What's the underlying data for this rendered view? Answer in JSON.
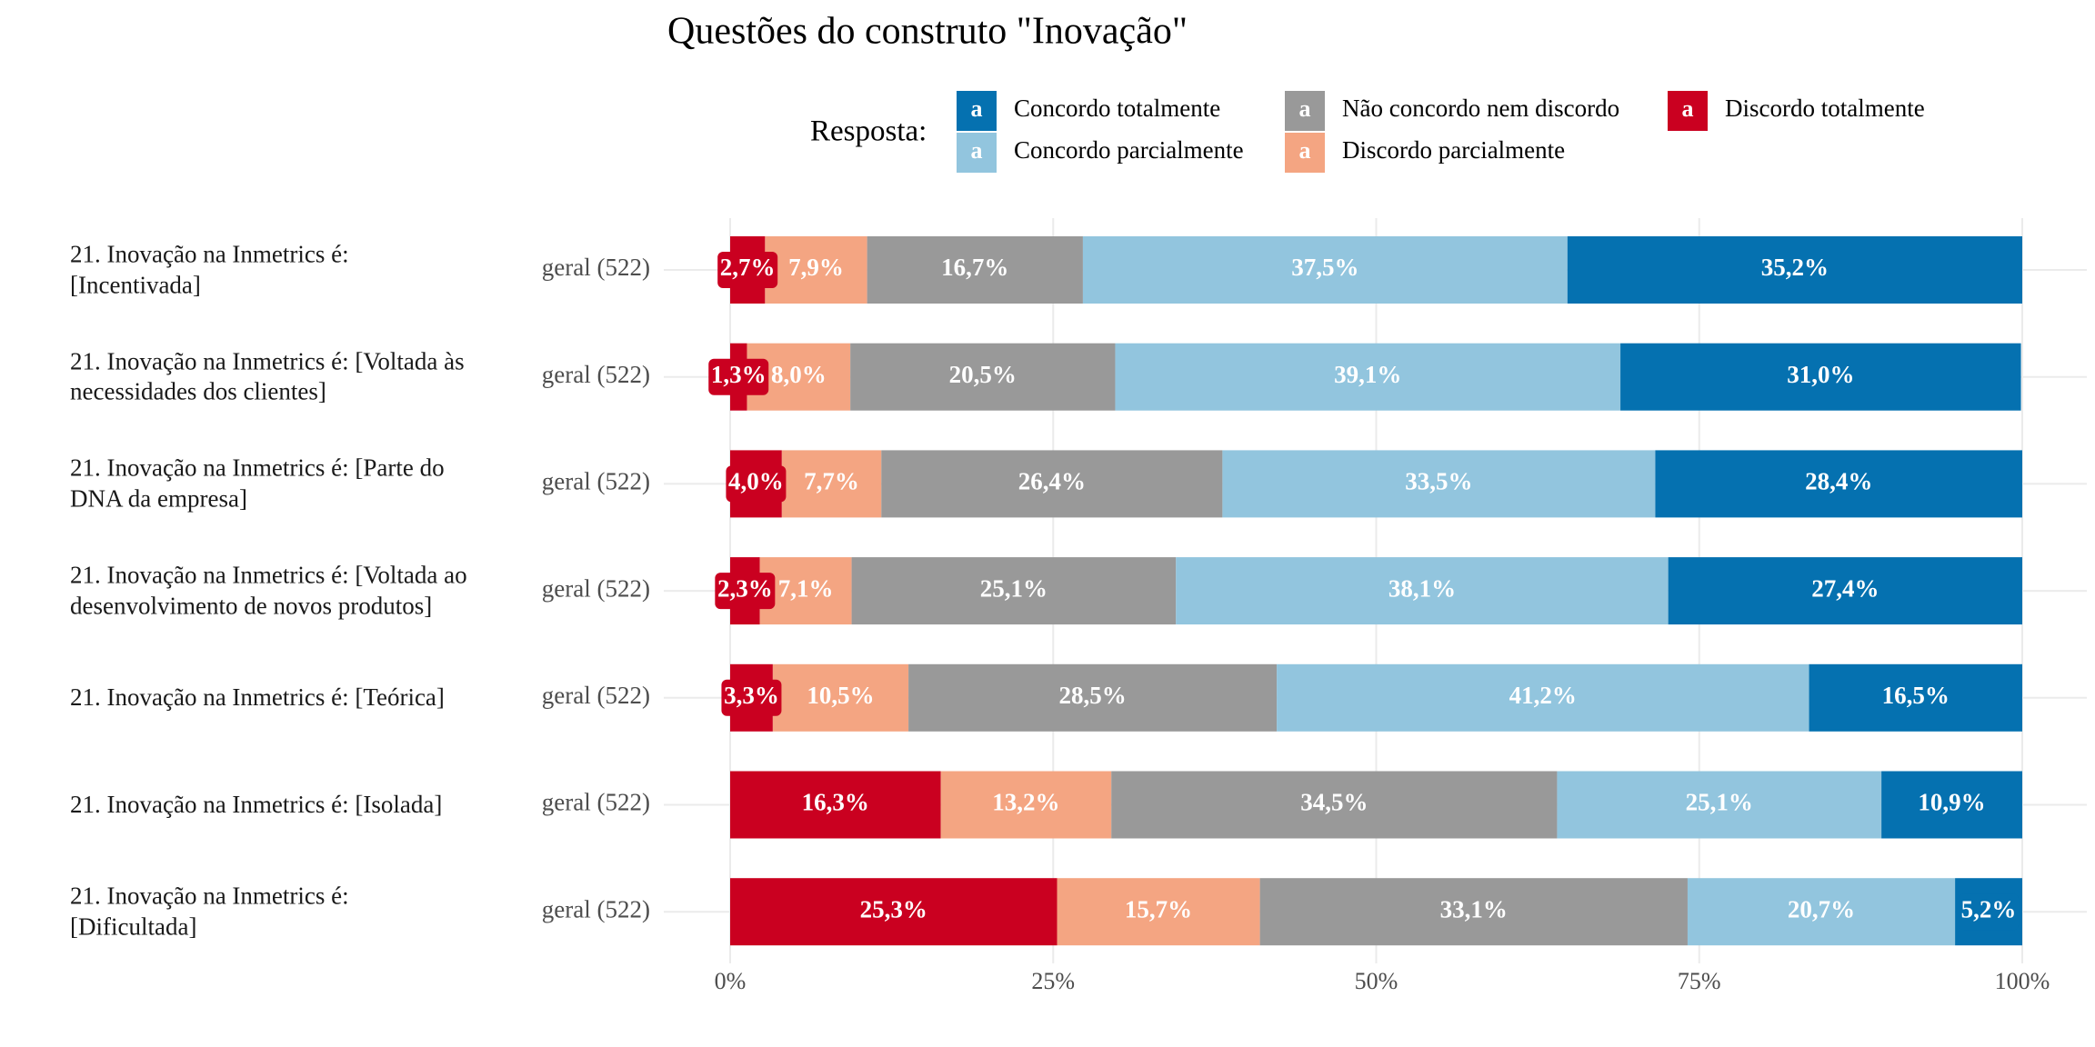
{
  "chart_data": {
    "type": "stacked_barh",
    "title": "Questões do construto \"Inovação\"",
    "legend_title": "Resposta:",
    "legend_key_text": "a",
    "categories": [
      "21. Inovação na Inmetrics é:\n[Incentivada]",
      "21. Inovação na Inmetrics é: [Voltada às\nnecessidades dos clientes]",
      "21. Inovação na Inmetrics é: [Parte do\nDNA da empresa]",
      "21. Inovação na Inmetrics é: [Voltada ao\ndesenvolvimento de novos produtos]",
      "21. Inovação na Inmetrics é: [Teórica]",
      "21. Inovação na Inmetrics é: [Isolada]",
      "21. Inovação na Inmetrics é:\n[Dificultada]"
    ],
    "group_labels": [
      "geral (522)",
      "geral (522)",
      "geral (522)",
      "geral (522)",
      "geral (522)",
      "geral (522)",
      "geral (522)"
    ],
    "series": [
      {
        "name": "Concordo totalmente",
        "color": "#0571b0",
        "values": [
          35.2,
          31.0,
          28.4,
          27.4,
          16.5,
          10.9,
          5.2
        ],
        "value_labels": [
          "35,2%",
          "31,0%",
          "28,4%",
          "27,4%",
          "16,5%",
          "10,9%",
          "5,2%"
        ]
      },
      {
        "name": "Concordo parcialmente",
        "color": "#92c5de",
        "values": [
          37.5,
          39.1,
          33.5,
          38.1,
          41.2,
          25.1,
          20.7
        ],
        "value_labels": [
          "37,5%",
          "39,1%",
          "33,5%",
          "38,1%",
          "41,2%",
          "25,1%",
          "20,7%"
        ]
      },
      {
        "name": "Não concordo nem discordo",
        "color": "#999999",
        "values": [
          16.7,
          20.5,
          26.4,
          25.1,
          28.5,
          34.5,
          33.1
        ],
        "value_labels": [
          "16,7%",
          "20,5%",
          "26,4%",
          "25,1%",
          "28,5%",
          "34,5%",
          "33,1%"
        ]
      },
      {
        "name": "Discordo parcialmente",
        "color": "#f4a582",
        "values": [
          7.9,
          8.0,
          7.7,
          7.1,
          10.5,
          13.2,
          15.7
        ],
        "value_labels": [
          "7,9%",
          "8,0%",
          "7,7%",
          "7,1%",
          "10,5%",
          "13,2%",
          "15,7%"
        ]
      },
      {
        "name": "Discordo totalmente",
        "color": "#ca0020",
        "values": [
          2.7,
          1.3,
          4.0,
          2.3,
          3.3,
          16.3,
          25.3
        ],
        "value_labels": [
          "2,7%",
          "1,3%",
          "4,0%",
          "2,3%",
          "3,3%",
          "16,3%",
          "25,3%"
        ]
      }
    ],
    "xlim": [
      0,
      100
    ],
    "xticks": [
      {
        "value": 0,
        "label": "0%"
      },
      {
        "value": 25,
        "label": "25%"
      },
      {
        "value": 50,
        "label": "50%"
      },
      {
        "value": 75,
        "label": "75%"
      },
      {
        "value": 100,
        "label": "100%"
      }
    ],
    "grid": true
  }
}
